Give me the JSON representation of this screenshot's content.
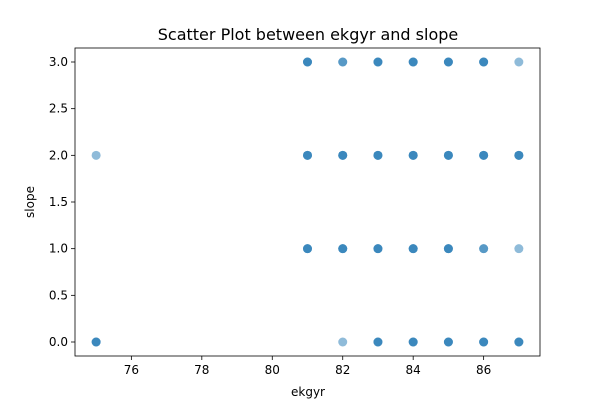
{
  "chart_data": {
    "type": "scatter",
    "title": "Scatter Plot between ekgyr and slope",
    "xlabel": "ekgyr",
    "ylabel": "slope",
    "xlim": [
      74.4,
      87.6
    ],
    "ylim": [
      -0.15,
      3.15
    ],
    "xticks": [
      76,
      78,
      80,
      82,
      84,
      86
    ],
    "yticks": [
      0.0,
      0.5,
      1.0,
      1.5,
      2.0,
      2.5,
      3.0
    ],
    "grid": false,
    "legend": "none",
    "marker_color": "#1f77b4",
    "marker_alpha": 0.5,
    "series": [
      {
        "points": [
          {
            "x": 75,
            "y": 0
          },
          {
            "x": 75,
            "y": 0
          },
          {
            "x": 75,
            "y": 0
          },
          {
            "x": 75,
            "y": 2
          },
          {
            "x": 81,
            "y": 1
          },
          {
            "x": 81,
            "y": 1
          },
          {
            "x": 81,
            "y": 1
          },
          {
            "x": 81,
            "y": 2
          },
          {
            "x": 81,
            "y": 2
          },
          {
            "x": 81,
            "y": 2
          },
          {
            "x": 81,
            "y": 3
          },
          {
            "x": 81,
            "y": 3
          },
          {
            "x": 81,
            "y": 3
          },
          {
            "x": 82,
            "y": 0
          },
          {
            "x": 82,
            "y": 1
          },
          {
            "x": 82,
            "y": 1
          },
          {
            "x": 82,
            "y": 1
          },
          {
            "x": 82,
            "y": 2
          },
          {
            "x": 82,
            "y": 2
          },
          {
            "x": 82,
            "y": 2
          },
          {
            "x": 82,
            "y": 3
          },
          {
            "x": 82,
            "y": 3
          },
          {
            "x": 83,
            "y": 0
          },
          {
            "x": 83,
            "y": 0
          },
          {
            "x": 83,
            "y": 0
          },
          {
            "x": 83,
            "y": 1
          },
          {
            "x": 83,
            "y": 1
          },
          {
            "x": 83,
            "y": 1
          },
          {
            "x": 83,
            "y": 2
          },
          {
            "x": 83,
            "y": 2
          },
          {
            "x": 83,
            "y": 2
          },
          {
            "x": 83,
            "y": 3
          },
          {
            "x": 83,
            "y": 3
          },
          {
            "x": 83,
            "y": 3
          },
          {
            "x": 84,
            "y": 0
          },
          {
            "x": 84,
            "y": 0
          },
          {
            "x": 84,
            "y": 0
          },
          {
            "x": 84,
            "y": 1
          },
          {
            "x": 84,
            "y": 1
          },
          {
            "x": 84,
            "y": 1
          },
          {
            "x": 84,
            "y": 2
          },
          {
            "x": 84,
            "y": 2
          },
          {
            "x": 84,
            "y": 2
          },
          {
            "x": 84,
            "y": 3
          },
          {
            "x": 84,
            "y": 3
          },
          {
            "x": 84,
            "y": 3
          },
          {
            "x": 85,
            "y": 0
          },
          {
            "x": 85,
            "y": 0
          },
          {
            "x": 85,
            "y": 0
          },
          {
            "x": 85,
            "y": 1
          },
          {
            "x": 85,
            "y": 1
          },
          {
            "x": 85,
            "y": 1
          },
          {
            "x": 85,
            "y": 2
          },
          {
            "x": 85,
            "y": 2
          },
          {
            "x": 85,
            "y": 2
          },
          {
            "x": 85,
            "y": 3
          },
          {
            "x": 85,
            "y": 3
          },
          {
            "x": 85,
            "y": 3
          },
          {
            "x": 86,
            "y": 0
          },
          {
            "x": 86,
            "y": 0
          },
          {
            "x": 86,
            "y": 0
          },
          {
            "x": 86,
            "y": 1
          },
          {
            "x": 86,
            "y": 1
          },
          {
            "x": 86,
            "y": 2
          },
          {
            "x": 86,
            "y": 2
          },
          {
            "x": 86,
            "y": 2
          },
          {
            "x": 86,
            "y": 3
          },
          {
            "x": 86,
            "y": 3
          },
          {
            "x": 86,
            "y": 3
          },
          {
            "x": 87,
            "y": 0
          },
          {
            "x": 87,
            "y": 0
          },
          {
            "x": 87,
            "y": 0
          },
          {
            "x": 87,
            "y": 1
          },
          {
            "x": 87,
            "y": 2
          },
          {
            "x": 87,
            "y": 2
          },
          {
            "x": 87,
            "y": 2
          },
          {
            "x": 87,
            "y": 3
          }
        ]
      }
    ]
  }
}
